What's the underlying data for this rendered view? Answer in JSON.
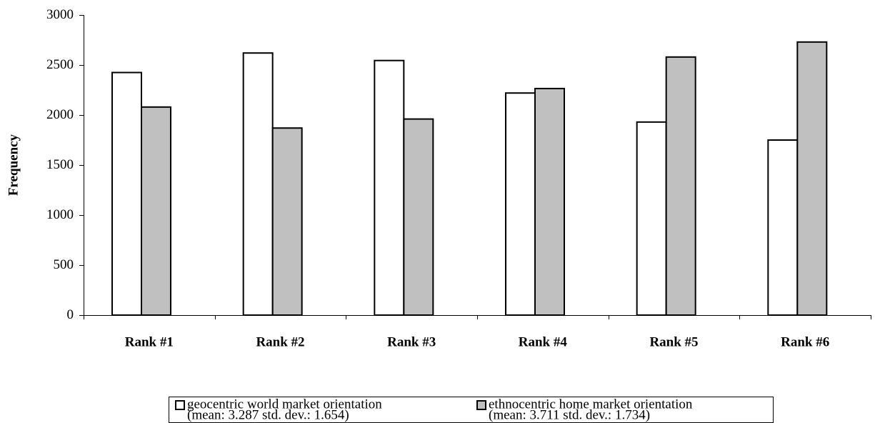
{
  "chart_data": {
    "type": "bar",
    "y_label": "Frequency",
    "categories": [
      "Rank #1",
      "Rank #2",
      "Rank #3",
      "Rank #4",
      "Rank #5",
      "Rank #6"
    ],
    "series": [
      {
        "name": "geocentric world market orientation",
        "description": "(mean: 3.287 std. dev.: 1.654)",
        "color": "#ffffff",
        "values": [
          2425,
          2620,
          2545,
          2220,
          1930,
          1750
        ]
      },
      {
        "name": "ethnocentric home market orientation",
        "description": "(mean: 3.711 std. dev.: 1.734)",
        "color": "#c0c0c0",
        "values": [
          2080,
          1870,
          1960,
          2265,
          2580,
          2730
        ]
      }
    ],
    "ylim": [
      0,
      3000
    ],
    "yticks": [
      0,
      500,
      1000,
      1500,
      2000,
      2500,
      3000
    ],
    "grid": false,
    "legend": "bottom"
  }
}
